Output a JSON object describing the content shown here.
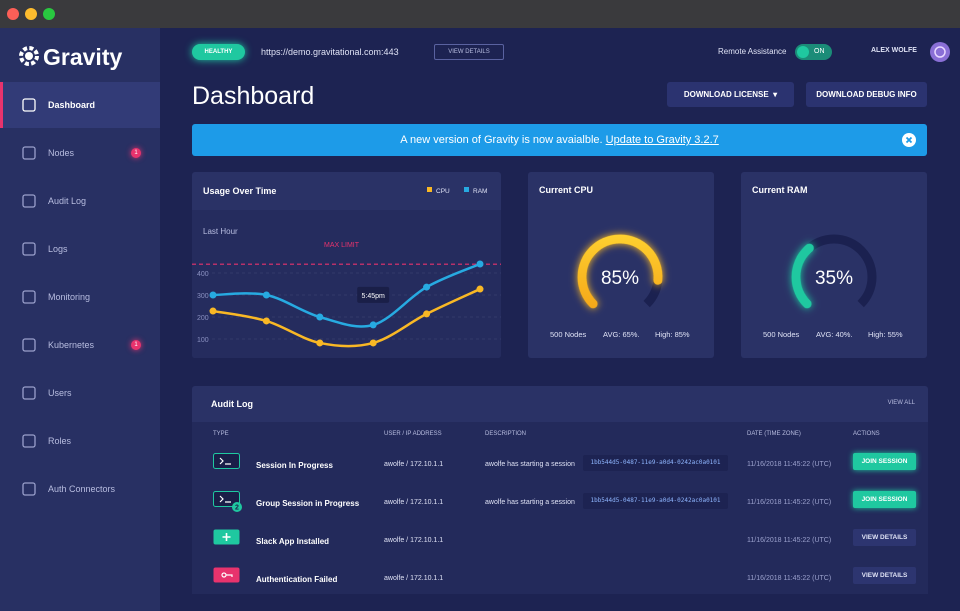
{
  "sidebar": {
    "logo": "Gravity",
    "items": [
      {
        "label": "Dashboard"
      },
      {
        "label": "Nodes",
        "badge": 1
      },
      {
        "label": "Audit Log"
      },
      {
        "label": "Logs"
      },
      {
        "label": "Monitoring"
      },
      {
        "label": "Kubernetes",
        "badge": 1
      },
      {
        "label": "Users"
      },
      {
        "label": "Roles"
      },
      {
        "label": "Auth Connectors"
      }
    ]
  },
  "topbar": {
    "status": "HEALTHY",
    "url": "https://demo.gravitational.com:443",
    "details_button": "VIEW DETAILS",
    "remote_assistance": "Remote Assistance",
    "toggle": "ON",
    "user": "ALEX WOLFE"
  },
  "header": {
    "title": "Dashboard",
    "buttons": [
      "DOWNLOAD LICENSE",
      "DOWNLOAD DEBUG INFO"
    ]
  },
  "banner": {
    "text": "A new version of Gravity is now avaialble.",
    "link": "Update to Gravity 3.2.7"
  },
  "chart_data": {
    "type": "line",
    "title": "Usage Over Time",
    "period": "Last Hour",
    "categories": [
      null,
      null,
      null,
      null,
      null,
      null
    ],
    "series": [
      {
        "name": "CPU",
        "color": "#f9b825",
        "values": [
          227,
          182,
          82,
          82,
          214,
          327
        ]
      },
      {
        "name": "RAM",
        "color": "#27aae1",
        "values": [
          300,
          300,
          200,
          164,
          336,
          441
        ]
      }
    ],
    "ylim": [
      0,
      500
    ],
    "yticks": [
      100,
      200,
      300,
      400
    ],
    "grid": true,
    "max_limit": {
      "label": "MAX LIMIT",
      "value": 440,
      "color": "#e8336d"
    },
    "tooltip": "5:45pm"
  },
  "cpu": {
    "title": "Current CPU",
    "value": 85,
    "value_label": "85%",
    "range": [
      0,
      100
    ],
    "nodes": "500 Nodes",
    "avg": "AVG: 65%.",
    "high": "High: 85%"
  },
  "ram": {
    "title": "Current RAM",
    "value": 35,
    "value_label": "35%",
    "range": [
      0,
      100
    ],
    "nodes": "500 Nodes",
    "avg": "AVG: 40%.",
    "high": "High: 55%"
  },
  "audit_log": {
    "title": "Audit Log",
    "view_all": "VIEW ALL",
    "columns": [
      "TYPE",
      "USER / IP ADDRESS",
      "DESCRIPTION",
      "DATE (TIME ZONE)",
      "ACTIONS"
    ],
    "rows": [
      {
        "event": "Session In Progress",
        "user": "awolfe / 172.10.1.1",
        "description": "awolfe has starting a session",
        "id": "1bb544d5-0487-11e9-a0d4-0242ac0a0101",
        "date": "11/16/2018 11:45:22 (UTC)",
        "action": "JOIN SESSION"
      },
      {
        "event": "Group Session in Progress",
        "icon_badge": 2,
        "user": "awolfe / 172.10.1.1",
        "description": "awolfe has starting a session",
        "id": "1bb544d5-0487-11e9-a0d4-0242ac0a0101",
        "date": "11/16/2018 11:45:22 (UTC)",
        "action": "JOIN SESSION"
      },
      {
        "event": "Slack App Installed",
        "user": "awolfe / 172.10.1.1",
        "date": "11/16/2018 11:45:22 (UTC)",
        "action": "VIEW DETAILS"
      },
      {
        "event": "Authentication Failed",
        "user": "awolfe / 172.10.1.1",
        "date": "11/16/2018 11:45:22 (UTC)",
        "action": "VIEW DETAILS"
      }
    ]
  }
}
